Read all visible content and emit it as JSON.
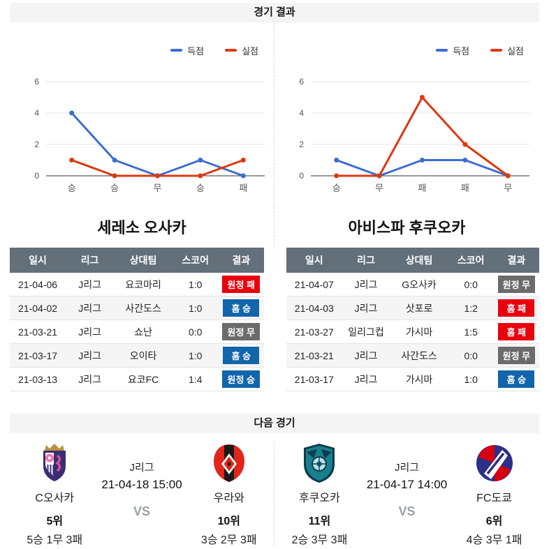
{
  "page": {
    "results_header": "경기 결과",
    "next_header": "다음 경기"
  },
  "colors": {
    "score_blue": "#3d6dd0",
    "concede_red": "#dc3912",
    "badge_win_blue": "#1165ab",
    "badge_lose_red": "#e8000d",
    "badge_draw_gray": "#6b6b6b",
    "table_header_bg": "#636f79"
  },
  "chart_data": [
    {
      "type": "line",
      "team": "세레소 오사카",
      "categories": [
        "승",
        "승",
        "무",
        "승",
        "패"
      ],
      "series": [
        {
          "name": "득점",
          "color": "#3d6dd0",
          "values": [
            4,
            1,
            0,
            1,
            0
          ]
        },
        {
          "name": "실점",
          "color": "#dc3912",
          "values": [
            1,
            0,
            0,
            0,
            1
          ]
        }
      ],
      "yticks": [
        0,
        2,
        4,
        6
      ],
      "ylim": [
        0,
        6
      ],
      "xlabel": "",
      "ylabel": "",
      "grid": true,
      "legend_position": "top-right"
    },
    {
      "type": "line",
      "team": "아비스파 후쿠오카",
      "categories": [
        "승",
        "무",
        "패",
        "패",
        "무"
      ],
      "series": [
        {
          "name": "득점",
          "color": "#3d6dd0",
          "values": [
            1,
            0,
            1,
            1,
            0
          ]
        },
        {
          "name": "실점",
          "color": "#dc3912",
          "values": [
            0,
            0,
            5,
            2,
            0
          ]
        }
      ],
      "yticks": [
        0,
        2,
        4,
        6
      ],
      "ylim": [
        0,
        6
      ],
      "xlabel": "",
      "ylabel": "",
      "grid": true,
      "legend_position": "top-right"
    }
  ],
  "tables": [
    {
      "team": "세레소 오사카",
      "columns": [
        "일시",
        "리그",
        "상대팀",
        "스코어",
        "결과"
      ],
      "rows": [
        {
          "date": "21-04-06",
          "league": "J리그",
          "opponent": "요코마리",
          "score": "1:0",
          "result": "원정 패",
          "result_type": "lose"
        },
        {
          "date": "21-04-02",
          "league": "J리그",
          "opponent": "사간도스",
          "score": "1:0",
          "result": "홈 승",
          "result_type": "win"
        },
        {
          "date": "21-03-21",
          "league": "J리그",
          "opponent": "쇼난",
          "score": "0:0",
          "result": "원정 무",
          "result_type": "draw"
        },
        {
          "date": "21-03-17",
          "league": "J리그",
          "opponent": "오이타",
          "score": "1:0",
          "result": "홈 승",
          "result_type": "win"
        },
        {
          "date": "21-03-13",
          "league": "J리그",
          "opponent": "요코FC",
          "score": "1:4",
          "result": "원정 승",
          "result_type": "win"
        }
      ]
    },
    {
      "team": "아비스파 후쿠오카",
      "columns": [
        "일시",
        "리그",
        "상대팀",
        "스코어",
        "결과"
      ],
      "rows": [
        {
          "date": "21-04-07",
          "league": "J리그",
          "opponent": "G오사카",
          "score": "0:0",
          "result": "원정 무",
          "result_type": "draw"
        },
        {
          "date": "21-04-03",
          "league": "J리그",
          "opponent": "삿포로",
          "score": "1:2",
          "result": "홈 패",
          "result_type": "lose"
        },
        {
          "date": "21-03-27",
          "league": "일리그컵",
          "opponent": "가시마",
          "score": "1:5",
          "result": "홈 패",
          "result_type": "lose"
        },
        {
          "date": "21-03-21",
          "league": "J리그",
          "opponent": "사간도스",
          "score": "0:0",
          "result": "원정 무",
          "result_type": "draw"
        },
        {
          "date": "21-03-17",
          "league": "J리그",
          "opponent": "가시마",
          "score": "1:0",
          "result": "홈 승",
          "result_type": "win"
        }
      ]
    }
  ],
  "next_matches": [
    {
      "league": "J리그",
      "datetime": "21-04-18 15:00",
      "vs": "VS",
      "home": {
        "name": "C오사카",
        "rank": "5위",
        "record": "5승 1무 3패",
        "logo_icon": "cerezo-osaka-crest-icon"
      },
      "away": {
        "name": "우라와",
        "rank": "10위",
        "record": "3승 2무 3패",
        "logo_icon": "urawa-crest-icon"
      }
    },
    {
      "league": "J리그",
      "datetime": "21-04-17 14:00",
      "vs": "VS",
      "home": {
        "name": "후쿠오카",
        "rank": "11위",
        "record": "2승 3무 3패",
        "logo_icon": "avispa-fukuoka-crest-icon"
      },
      "away": {
        "name": "FC도쿄",
        "rank": "6위",
        "record": "4승 3무 1패",
        "logo_icon": "fc-tokyo-crest-icon"
      }
    }
  ]
}
